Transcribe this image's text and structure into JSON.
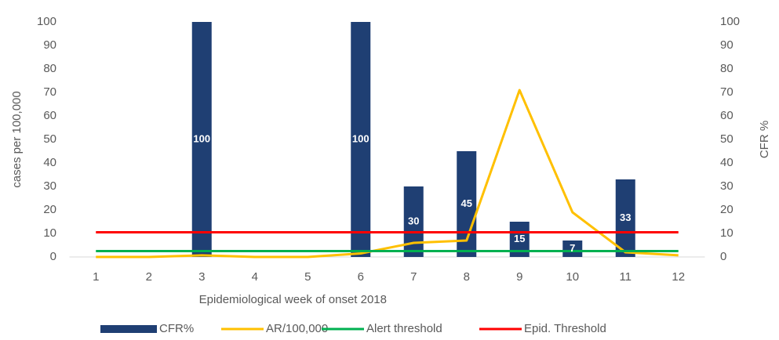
{
  "chart_data": {
    "type": "bar-line",
    "categories": [
      "1",
      "2",
      "3",
      "4",
      "5",
      "6",
      "7",
      "8",
      "9",
      "10",
      "11",
      "12"
    ],
    "x_label": "Epidemiological week of onset 2018",
    "y_label": "cases per 100,000",
    "y2_label": "CFR %",
    "ylim": [
      0,
      100
    ],
    "yticks": [
      0,
      10,
      20,
      30,
      40,
      50,
      60,
      70,
      80,
      90,
      100
    ],
    "y2lim": [
      0,
      100
    ],
    "y2ticks": [
      0,
      10,
      20,
      30,
      40,
      50,
      60,
      70,
      80,
      90,
      100
    ],
    "grid": false,
    "legend": "bottom",
    "series": [
      {
        "name": "CFR%",
        "type": "bar",
        "axis": "y2",
        "color": "#1f3f73",
        "values": [
          null,
          null,
          100,
          null,
          null,
          100,
          30,
          45,
          15,
          7,
          33,
          null
        ]
      },
      {
        "name": "AR/100,000",
        "type": "line",
        "color": "#ffc000",
        "values": [
          0,
          0,
          0.7,
          0,
          0,
          1.5,
          6,
          7,
          71,
          19,
          2,
          0.7
        ]
      },
      {
        "name": "Alert threshold",
        "type": "line",
        "color": "#00b050",
        "values": [
          2.5,
          2.5,
          2.5,
          2.5,
          2.5,
          2.5,
          2.5,
          2.5,
          2.5,
          2.5,
          2.5,
          2.5
        ]
      },
      {
        "name": "Epid. Threshold",
        "type": "line",
        "color": "#ff0000",
        "values": [
          10.5,
          10.5,
          10.5,
          10.5,
          10.5,
          10.5,
          10.5,
          10.5,
          10.5,
          10.5,
          10.5,
          10.5
        ]
      }
    ]
  }
}
